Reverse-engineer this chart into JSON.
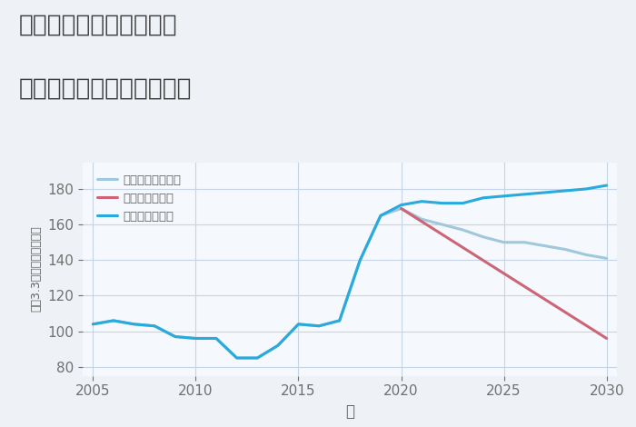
{
  "title_line1": "奈良県奈良市鶴舞西町の",
  "title_line2": "中古マンションの価格推移",
  "xlabel": "年",
  "ylabel": "平（3.3㎡）単価（万円）",
  "background_color": "#eef2f7",
  "plot_background_color": "#f5f8fc",
  "grid_color": "#c5d5e5",
  "legend_labels": [
    "グッドシナリオ",
    "バッドシナリオ",
    "ノーマルシナリオ"
  ],
  "good_color": "#28aadc",
  "bad_color": "#cc6677",
  "normal_color": "#a0c8dc",
  "good_years": [
    2005,
    2006,
    2007,
    2008,
    2009,
    2010,
    2011,
    2012,
    2013,
    2014,
    2015,
    2016,
    2017,
    2018,
    2019,
    2020,
    2021,
    2022,
    2023,
    2024,
    2025,
    2026,
    2027,
    2028,
    2029,
    2030
  ],
  "bad_years": [
    2020,
    2030
  ],
  "normal_years": [
    2005,
    2006,
    2007,
    2008,
    2009,
    2010,
    2011,
    2012,
    2013,
    2014,
    2015,
    2016,
    2017,
    2018,
    2019,
    2020,
    2021,
    2022,
    2023,
    2024,
    2025,
    2026,
    2027,
    2028,
    2029,
    2030
  ],
  "good_values": [
    104,
    106,
    104,
    103,
    97,
    96,
    96,
    85,
    85,
    92,
    104,
    103,
    106,
    140,
    165,
    171,
    173,
    172,
    172,
    175,
    176,
    177,
    178,
    179,
    180,
    182
  ],
  "bad_values": [
    169,
    96
  ],
  "normal_values": [
    104,
    106,
    104,
    103,
    97,
    96,
    96,
    85,
    85,
    92,
    104,
    103,
    106,
    140,
    165,
    169,
    163,
    160,
    157,
    153,
    150,
    150,
    148,
    146,
    143,
    141
  ],
  "ylim": [
    75,
    195
  ],
  "xlim": [
    2004.5,
    2030.5
  ],
  "yticks": [
    80,
    100,
    120,
    140,
    160,
    180
  ],
  "xticks": [
    2005,
    2010,
    2015,
    2020,
    2025,
    2030
  ],
  "line_width": 2.2,
  "title_color": "#404040",
  "title_fontsize": 19,
  "axis_label_color": "#606060",
  "tick_color": "#707070",
  "tick_fontsize": 11
}
